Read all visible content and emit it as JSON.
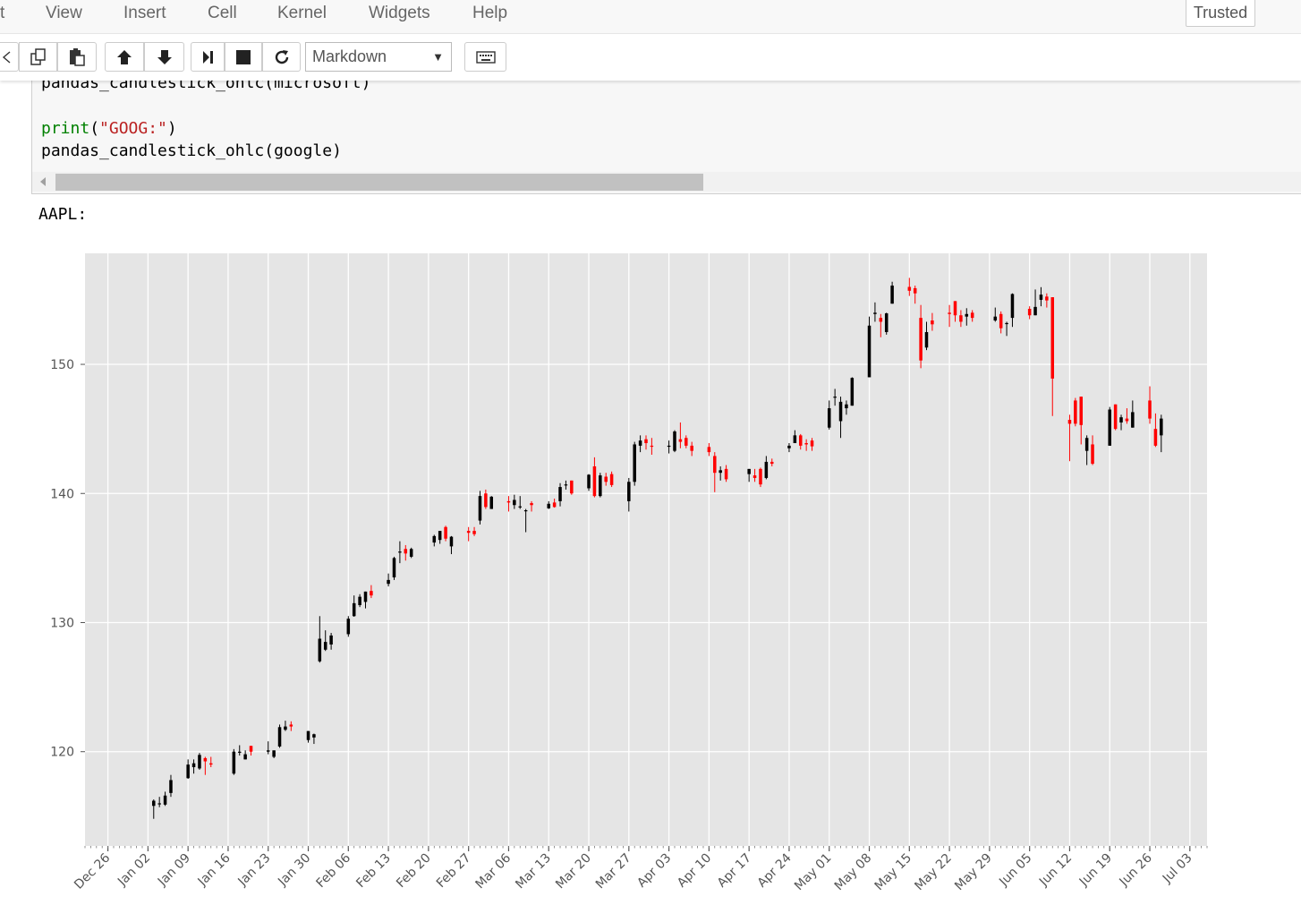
{
  "menubar": {
    "edge_fragment": "t",
    "items": [
      "View",
      "Insert",
      "Cell",
      "Kernel",
      "Widgets",
      "Help"
    ],
    "trusted_label": "Trusted"
  },
  "toolbar": {
    "buttons": [
      "cut-icon",
      "copy-icon",
      "paste-icon",
      "move-up-icon",
      "move-down-icon",
      "run-icon",
      "stop-icon",
      "restart-icon",
      "keyboard-icon"
    ],
    "cell_type": "Markdown"
  },
  "code_cell": {
    "line1": "pandas_candlestick_ohlc(microsoft)",
    "line2_func": "print",
    "line2_open": "(",
    "line2_str": "\"GOOG:\"",
    "line2_close": ")",
    "line3": "pandas_candlestick_ohlc(google)"
  },
  "output": {
    "label": "AAPL:"
  },
  "chart_data": {
    "type": "candlestick",
    "title": "",
    "xlabel": "",
    "ylabel": "",
    "ylim": [
      112.7,
      158.6
    ],
    "yticks": [
      120,
      130,
      140,
      150
    ],
    "xlim": [
      "2016-12-22",
      "2017-07-06"
    ],
    "xtick_labels": [
      "Dec 26",
      "Jan 02",
      "Jan 09",
      "Jan 16",
      "Jan 23",
      "Jan 30",
      "Feb 06",
      "Feb 13",
      "Feb 20",
      "Feb 27",
      "Mar 06",
      "Mar 13",
      "Mar 20",
      "Mar 27",
      "Apr 03",
      "Apr 10",
      "Apr 17",
      "Apr 24",
      "May 01",
      "May 08",
      "May 15",
      "May 22",
      "May 29",
      "Jun 05",
      "Jun 12",
      "Jun 19",
      "Jun 26",
      "Jul 03"
    ],
    "grid": true,
    "colors": {
      "up": "#000000",
      "down": "#ff0000",
      "background": "#e5e5e5",
      "grid": "#ffffff"
    },
    "candles": [
      {
        "d": "2017-01-03",
        "o": 115.8,
        "h": 116.3,
        "l": 114.8,
        "c": 116.2
      },
      {
        "d": "2017-01-04",
        "o": 116.0,
        "h": 116.5,
        "l": 115.7,
        "c": 116.0
      },
      {
        "d": "2017-01-05",
        "o": 115.9,
        "h": 116.9,
        "l": 115.8,
        "c": 116.6
      },
      {
        "d": "2017-01-06",
        "o": 116.8,
        "h": 118.2,
        "l": 116.5,
        "c": 117.8
      },
      {
        "d": "2017-01-09",
        "o": 117.95,
        "h": 119.4,
        "l": 117.9,
        "c": 119.0
      },
      {
        "d": "2017-01-10",
        "o": 118.8,
        "h": 119.4,
        "l": 118.3,
        "c": 119.1
      },
      {
        "d": "2017-01-11",
        "o": 118.7,
        "h": 119.9,
        "l": 118.6,
        "c": 119.75
      },
      {
        "d": "2017-01-12",
        "o": 119.5,
        "h": 119.6,
        "l": 118.2,
        "c": 119.25
      },
      {
        "d": "2017-01-13",
        "o": 119.1,
        "h": 119.6,
        "l": 118.8,
        "c": 119.0
      },
      {
        "d": "2017-01-17",
        "o": 118.3,
        "h": 120.2,
        "l": 118.2,
        "c": 120.0
      },
      {
        "d": "2017-01-18",
        "o": 120.0,
        "h": 120.5,
        "l": 119.7,
        "c": 120.0
      },
      {
        "d": "2017-01-19",
        "o": 119.4,
        "h": 120.1,
        "l": 119.4,
        "c": 119.8
      },
      {
        "d": "2017-01-20",
        "o": 120.45,
        "h": 120.45,
        "l": 119.7,
        "c": 120.0
      },
      {
        "d": "2017-01-23",
        "o": 120.0,
        "h": 120.8,
        "l": 119.8,
        "c": 120.1
      },
      {
        "d": "2017-01-24",
        "o": 119.6,
        "h": 120.1,
        "l": 119.5,
        "c": 120.1
      },
      {
        "d": "2017-01-25",
        "o": 120.4,
        "h": 122.1,
        "l": 120.3,
        "c": 121.9
      },
      {
        "d": "2017-01-26",
        "o": 121.7,
        "h": 122.4,
        "l": 121.6,
        "c": 121.95
      },
      {
        "d": "2017-01-27",
        "o": 122.1,
        "h": 122.35,
        "l": 121.6,
        "c": 121.95
      },
      {
        "d": "2017-01-30",
        "o": 120.9,
        "h": 121.6,
        "l": 120.7,
        "c": 121.6
      },
      {
        "d": "2017-01-31",
        "o": 121.1,
        "h": 121.4,
        "l": 120.6,
        "c": 121.35
      },
      {
        "d": "2017-02-01",
        "o": 127.0,
        "h": 130.5,
        "l": 126.9,
        "c": 128.75
      },
      {
        "d": "2017-02-02",
        "o": 127.9,
        "h": 129.4,
        "l": 127.8,
        "c": 128.5
      },
      {
        "d": "2017-02-03",
        "o": 128.3,
        "h": 129.2,
        "l": 127.9,
        "c": 129.0
      },
      {
        "d": "2017-02-06",
        "o": 129.1,
        "h": 130.5,
        "l": 128.9,
        "c": 130.3
      },
      {
        "d": "2017-02-07",
        "o": 130.5,
        "h": 132.1,
        "l": 130.45,
        "c": 131.5
      },
      {
        "d": "2017-02-08",
        "o": 131.35,
        "h": 132.2,
        "l": 131.2,
        "c": 132.0
      },
      {
        "d": "2017-02-09",
        "o": 131.6,
        "h": 132.4,
        "l": 131.1,
        "c": 132.4
      },
      {
        "d": "2017-02-10",
        "o": 132.45,
        "h": 132.9,
        "l": 131.9,
        "c": 132.1
      },
      {
        "d": "2017-02-13",
        "o": 133.0,
        "h": 133.8,
        "l": 132.8,
        "c": 133.3
      },
      {
        "d": "2017-02-14",
        "o": 133.5,
        "h": 135.1,
        "l": 133.3,
        "c": 135.0
      },
      {
        "d": "2017-02-15",
        "o": 135.5,
        "h": 136.3,
        "l": 134.6,
        "c": 135.5
      },
      {
        "d": "2017-02-16",
        "o": 135.7,
        "h": 136.0,
        "l": 134.8,
        "c": 135.35
      },
      {
        "d": "2017-02-17",
        "o": 135.1,
        "h": 135.8,
        "l": 135.0,
        "c": 135.7
      },
      {
        "d": "2017-02-21",
        "o": 136.2,
        "h": 136.8,
        "l": 135.9,
        "c": 136.7
      },
      {
        "d": "2017-02-22",
        "o": 136.4,
        "h": 137.1,
        "l": 136.1,
        "c": 137.1
      },
      {
        "d": "2017-02-23",
        "o": 137.4,
        "h": 137.5,
        "l": 136.3,
        "c": 136.5
      },
      {
        "d": "2017-02-24",
        "o": 135.9,
        "h": 136.7,
        "l": 135.3,
        "c": 136.65
      },
      {
        "d": "2017-02-27",
        "o": 137.1,
        "h": 137.4,
        "l": 136.3,
        "c": 136.95
      },
      {
        "d": "2017-02-28",
        "o": 137.1,
        "h": 137.4,
        "l": 136.7,
        "c": 136.85
      },
      {
        "d": "2017-03-01",
        "o": 137.9,
        "h": 140.2,
        "l": 137.6,
        "c": 139.8
      },
      {
        "d": "2017-03-02",
        "o": 140.0,
        "h": 140.3,
        "l": 138.8,
        "c": 138.95
      },
      {
        "d": "2017-03-03",
        "o": 138.8,
        "h": 139.8,
        "l": 138.8,
        "c": 139.75
      },
      {
        "d": "2017-03-06",
        "o": 139.4,
        "h": 139.8,
        "l": 138.6,
        "c": 139.3
      },
      {
        "d": "2017-03-07",
        "o": 139.1,
        "h": 139.9,
        "l": 138.8,
        "c": 139.5
      },
      {
        "d": "2017-03-08",
        "o": 138.95,
        "h": 139.8,
        "l": 138.8,
        "c": 139.0
      },
      {
        "d": "2017-03-09",
        "o": 138.7,
        "h": 138.8,
        "l": 137.0,
        "c": 138.7
      },
      {
        "d": "2017-03-10",
        "o": 139.25,
        "h": 139.4,
        "l": 138.6,
        "c": 139.1
      },
      {
        "d": "2017-03-13",
        "o": 138.85,
        "h": 139.4,
        "l": 138.8,
        "c": 139.2
      },
      {
        "d": "2017-03-14",
        "o": 139.3,
        "h": 139.6,
        "l": 138.9,
        "c": 138.95
      },
      {
        "d": "2017-03-15",
        "o": 139.4,
        "h": 140.8,
        "l": 139.0,
        "c": 140.5
      },
      {
        "d": "2017-03-16",
        "o": 140.7,
        "h": 141.0,
        "l": 140.3,
        "c": 140.7
      },
      {
        "d": "2017-03-17",
        "o": 141.0,
        "h": 141.0,
        "l": 139.9,
        "c": 140.0
      },
      {
        "d": "2017-03-20",
        "o": 140.4,
        "h": 141.5,
        "l": 140.2,
        "c": 141.45
      },
      {
        "d": "2017-03-21",
        "o": 142.1,
        "h": 142.8,
        "l": 139.7,
        "c": 139.8
      },
      {
        "d": "2017-03-22",
        "o": 139.8,
        "h": 141.6,
        "l": 139.7,
        "c": 141.4
      },
      {
        "d": "2017-03-23",
        "o": 141.3,
        "h": 141.6,
        "l": 140.6,
        "c": 140.9
      },
      {
        "d": "2017-03-24",
        "o": 141.5,
        "h": 141.7,
        "l": 140.5,
        "c": 140.65
      },
      {
        "d": "2017-03-27",
        "o": 139.4,
        "h": 141.2,
        "l": 138.6,
        "c": 140.9
      },
      {
        "d": "2017-03-28",
        "o": 140.9,
        "h": 144.0,
        "l": 140.6,
        "c": 143.8
      },
      {
        "d": "2017-03-29",
        "o": 143.7,
        "h": 144.5,
        "l": 143.2,
        "c": 144.1
      },
      {
        "d": "2017-03-30",
        "o": 144.2,
        "h": 144.5,
        "l": 143.4,
        "c": 143.9
      },
      {
        "d": "2017-03-31",
        "o": 143.7,
        "h": 144.3,
        "l": 143.0,
        "c": 143.65
      },
      {
        "d": "2017-04-03",
        "o": 143.7,
        "h": 144.1,
        "l": 143.1,
        "c": 143.7
      },
      {
        "d": "2017-04-04",
        "o": 143.3,
        "h": 144.9,
        "l": 143.2,
        "c": 144.8
      },
      {
        "d": "2017-04-05",
        "o": 144.2,
        "h": 145.5,
        "l": 143.5,
        "c": 144.0
      },
      {
        "d": "2017-04-06",
        "o": 144.3,
        "h": 144.5,
        "l": 143.5,
        "c": 143.7
      },
      {
        "d": "2017-04-07",
        "o": 143.7,
        "h": 144.0,
        "l": 142.9,
        "c": 143.3
      },
      {
        "d": "2017-04-10",
        "o": 143.6,
        "h": 143.9,
        "l": 142.9,
        "c": 143.2
      },
      {
        "d": "2017-04-11",
        "o": 142.9,
        "h": 143.2,
        "l": 140.1,
        "c": 141.6
      },
      {
        "d": "2017-04-12",
        "o": 141.6,
        "h": 142.1,
        "l": 141.0,
        "c": 141.8
      },
      {
        "d": "2017-04-13",
        "o": 141.9,
        "h": 142.2,
        "l": 140.9,
        "c": 141.1
      },
      {
        "d": "2017-04-17",
        "o": 141.5,
        "h": 141.9,
        "l": 140.9,
        "c": 141.9
      },
      {
        "d": "2017-04-18",
        "o": 141.4,
        "h": 141.9,
        "l": 140.9,
        "c": 141.2
      },
      {
        "d": "2017-04-19",
        "o": 141.9,
        "h": 142.0,
        "l": 140.5,
        "c": 140.7
      },
      {
        "d": "2017-04-20",
        "o": 141.2,
        "h": 142.9,
        "l": 141.1,
        "c": 142.45
      },
      {
        "d": "2017-04-21",
        "o": 142.45,
        "h": 142.7,
        "l": 142.1,
        "c": 142.3
      },
      {
        "d": "2017-04-24",
        "o": 143.5,
        "h": 143.9,
        "l": 143.2,
        "c": 143.7
      },
      {
        "d": "2017-04-25",
        "o": 143.9,
        "h": 144.9,
        "l": 143.9,
        "c": 144.5
      },
      {
        "d": "2017-04-26",
        "o": 144.5,
        "h": 144.6,
        "l": 143.4,
        "c": 143.7
      },
      {
        "d": "2017-04-27",
        "o": 143.9,
        "h": 144.2,
        "l": 143.3,
        "c": 143.8
      },
      {
        "d": "2017-04-28",
        "o": 144.1,
        "h": 144.3,
        "l": 143.3,
        "c": 143.65
      },
      {
        "d": "2017-05-01",
        "o": 145.1,
        "h": 147.2,
        "l": 144.95,
        "c": 146.6
      },
      {
        "d": "2017-05-02",
        "o": 147.5,
        "h": 148.1,
        "l": 146.8,
        "c": 147.5
      },
      {
        "d": "2017-05-03",
        "o": 145.6,
        "h": 147.5,
        "l": 144.3,
        "c": 147.1
      },
      {
        "d": "2017-05-04",
        "o": 146.6,
        "h": 147.2,
        "l": 146.1,
        "c": 146.9
      },
      {
        "d": "2017-05-05",
        "o": 146.8,
        "h": 149.0,
        "l": 146.8,
        "c": 148.95
      },
      {
        "d": "2017-05-08",
        "o": 149.0,
        "h": 153.7,
        "l": 149.0,
        "c": 153.0
      },
      {
        "d": "2017-05-09",
        "o": 153.9,
        "h": 154.8,
        "l": 153.3,
        "c": 154.0
      },
      {
        "d": "2017-05-10",
        "o": 153.6,
        "h": 153.9,
        "l": 152.1,
        "c": 153.3
      },
      {
        "d": "2017-05-11",
        "o": 152.5,
        "h": 154.0,
        "l": 152.3,
        "c": 153.95
      },
      {
        "d": "2017-05-12",
        "o": 154.7,
        "h": 156.4,
        "l": 154.7,
        "c": 156.1
      },
      {
        "d": "2017-05-15",
        "o": 156.0,
        "h": 156.7,
        "l": 155.3,
        "c": 155.7
      },
      {
        "d": "2017-05-16",
        "o": 155.9,
        "h": 156.1,
        "l": 154.7,
        "c": 155.5
      },
      {
        "d": "2017-05-17",
        "o": 153.6,
        "h": 154.6,
        "l": 149.7,
        "c": 150.3
      },
      {
        "d": "2017-05-18",
        "o": 151.3,
        "h": 153.3,
        "l": 151.1,
        "c": 152.5
      },
      {
        "d": "2017-05-19",
        "o": 153.4,
        "h": 153.98,
        "l": 152.6,
        "c": 153.1
      },
      {
        "d": "2017-05-22",
        "o": 154.0,
        "h": 154.6,
        "l": 152.9,
        "c": 153.9
      },
      {
        "d": "2017-05-23",
        "o": 154.9,
        "h": 154.9,
        "l": 153.3,
        "c": 153.8
      },
      {
        "d": "2017-05-24",
        "o": 153.8,
        "h": 154.2,
        "l": 152.9,
        "c": 153.3
      },
      {
        "d": "2017-05-25",
        "o": 153.7,
        "h": 154.35,
        "l": 153.0,
        "c": 153.9
      },
      {
        "d": "2017-05-26",
        "o": 154.0,
        "h": 154.2,
        "l": 153.3,
        "c": 153.6
      },
      {
        "d": "2017-05-30",
        "o": 153.4,
        "h": 154.4,
        "l": 153.3,
        "c": 153.7
      },
      {
        "d": "2017-05-31",
        "o": 153.9,
        "h": 154.1,
        "l": 152.4,
        "c": 152.8
      },
      {
        "d": "2017-06-01",
        "o": 153.2,
        "h": 153.3,
        "l": 152.2,
        "c": 153.2
      },
      {
        "d": "2017-06-02",
        "o": 153.6,
        "h": 155.5,
        "l": 152.9,
        "c": 155.45
      },
      {
        "d": "2017-06-05",
        "o": 154.3,
        "h": 154.5,
        "l": 153.5,
        "c": 153.8
      },
      {
        "d": "2017-06-06",
        "o": 153.8,
        "h": 155.8,
        "l": 153.8,
        "c": 154.45
      },
      {
        "d": "2017-06-07",
        "o": 155.0,
        "h": 155.98,
        "l": 154.5,
        "c": 155.4
      },
      {
        "d": "2017-06-08",
        "o": 155.25,
        "h": 155.5,
        "l": 154.4,
        "c": 154.95
      },
      {
        "d": "2017-06-09",
        "o": 155.2,
        "h": 155.2,
        "l": 146.0,
        "c": 148.9
      },
      {
        "d": "2017-06-12",
        "o": 145.7,
        "h": 146.1,
        "l": 142.5,
        "c": 145.4
      },
      {
        "d": "2017-06-13",
        "o": 147.2,
        "h": 147.4,
        "l": 145.2,
        "c": 145.4
      },
      {
        "d": "2017-06-14",
        "o": 147.5,
        "h": 147.5,
        "l": 143.8,
        "c": 145.3
      },
      {
        "d": "2017-06-15",
        "o": 143.3,
        "h": 144.5,
        "l": 142.2,
        "c": 144.3
      },
      {
        "d": "2017-06-16",
        "o": 143.8,
        "h": 144.5,
        "l": 142.2,
        "c": 142.3
      },
      {
        "d": "2017-06-19",
        "o": 143.7,
        "h": 146.7,
        "l": 143.7,
        "c": 146.5
      },
      {
        "d": "2017-06-20",
        "o": 146.9,
        "h": 146.9,
        "l": 144.9,
        "c": 145.0
      },
      {
        "d": "2017-06-21",
        "o": 145.5,
        "h": 146.1,
        "l": 144.9,
        "c": 145.9
      },
      {
        "d": "2017-06-22",
        "o": 145.8,
        "h": 146.6,
        "l": 145.4,
        "c": 145.6
      },
      {
        "d": "2017-06-23",
        "o": 145.1,
        "h": 147.2,
        "l": 145.1,
        "c": 146.3
      },
      {
        "d": "2017-06-26",
        "o": 147.2,
        "h": 148.3,
        "l": 145.4,
        "c": 145.8
      },
      {
        "d": "2017-06-27",
        "o": 145.0,
        "h": 146.2,
        "l": 143.6,
        "c": 143.7
      },
      {
        "d": "2017-06-28",
        "o": 144.5,
        "h": 146.1,
        "l": 143.2,
        "c": 145.8
      }
    ]
  }
}
